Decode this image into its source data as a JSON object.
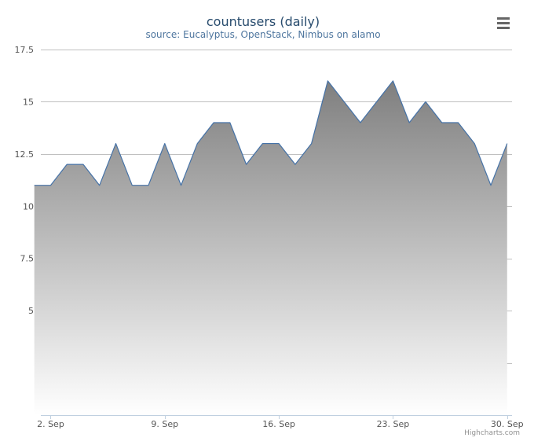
{
  "colors": {
    "line": "#4572a7",
    "area_top": "#7f7f7f",
    "area_bottom": "#ffffff",
    "grid": "#c0c0c0",
    "axis": "#c0d0e0",
    "title": "#274b6d",
    "subtitle": "#4d759e",
    "menu_icon": "#666666"
  },
  "credit": "Highcharts.com",
  "menu": {
    "icon": "hamburger-menu-icon"
  },
  "chart_data": {
    "type": "area",
    "title": "countusers (daily)",
    "subtitle": "source: Eucalyptus, OpenStack, Nimbus on alamo",
    "xlabel": "",
    "ylabel": "",
    "grid": true,
    "legend": "none",
    "y_ticks": [
      "5",
      "7.5",
      "10",
      "12.5",
      "15",
      "17.5"
    ],
    "y_tick_values": [
      5,
      7.5,
      10,
      12.5,
      15,
      17.5
    ],
    "x_ticks": [
      "2. Sep",
      "9. Sep",
      "16. Sep",
      "23. Sep",
      "30. Sep"
    ],
    "x_tick_values": [
      2,
      9,
      16,
      23,
      30
    ],
    "xlim": [
      1.4,
      30.3
    ],
    "ylim": [
      0,
      17.5
    ],
    "x": [
      1,
      2,
      3,
      4,
      5,
      6,
      7,
      8,
      9,
      10,
      11,
      12,
      13,
      14,
      15,
      16,
      17,
      18,
      19,
      20,
      21,
      22,
      23,
      24,
      25,
      26,
      27,
      28,
      29,
      30
    ],
    "values": [
      11,
      11,
      12,
      12,
      11,
      13,
      11,
      11,
      13,
      11,
      13,
      14,
      14,
      12,
      13,
      13,
      12,
      13,
      16,
      15,
      14,
      15,
      16,
      14,
      15,
      14,
      14,
      13,
      11,
      13
    ]
  }
}
